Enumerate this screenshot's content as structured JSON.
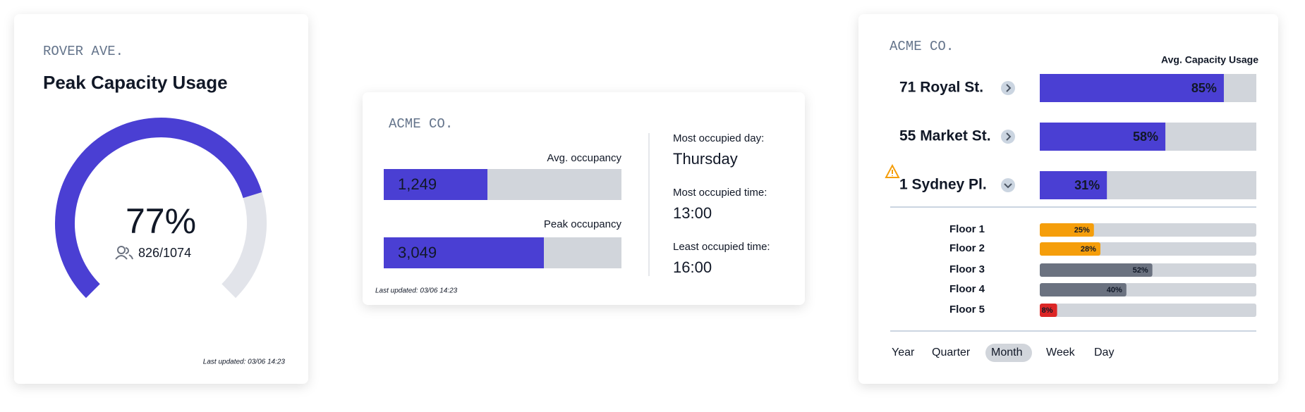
{
  "cards": [
    {
      "location": "ROVER AVE.",
      "title": "Peak Capacity Usage",
      "value": 77,
      "value_label": "77%",
      "occupancy": "826/1074",
      "last_updated": "Last updated: 03/06 14:23",
      "color": "#4a3fd3"
    },
    {
      "company": "ACME CO.",
      "metrics": [
        {
          "label": "Avg. occupancy",
          "value": "1,249"
        },
        {
          "label": "Peak occupancy",
          "value": "3,049"
        }
      ],
      "last_updated": "Last updated: 03/06 14:23",
      "stats": [
        {
          "label": "Most occupied day:",
          "value": "Thursday"
        },
        {
          "label": "Most occupied time:",
          "value": "13:00"
        },
        {
          "label": "Least occupied time:",
          "value": "16:00"
        }
      ]
    },
    {
      "company": "ACME CO.",
      "column_label": "Avg. Capacity Usage",
      "sites": [
        {
          "name": "71 Royal St.",
          "value": 85,
          "value_label": "85%"
        },
        {
          "name": "55 Market St.",
          "value": 58,
          "value_label": "58%"
        },
        {
          "name": "1 Sydney Pl.",
          "value": 31,
          "value_label": "31%"
        }
      ],
      "floors": [
        {
          "name": "Floor 1",
          "value": 25,
          "value_label": "25%",
          "color": "#f59e0b"
        },
        {
          "name": "Floor 2",
          "value": 28,
          "value_label": "28%",
          "color": "#f59e0b"
        },
        {
          "name": "Floor 3",
          "value": 52,
          "value_label": "52%",
          "color": "#6b7280"
        },
        {
          "name": "Floor 4",
          "value": 40,
          "value_label": "40%",
          "color": "#6b7280"
        },
        {
          "name": "Floor 5",
          "value": 8,
          "value_label": "8%",
          "color": "#dc2626"
        }
      ],
      "periods": [
        "Year",
        "Quarter",
        "Month",
        "Week",
        "Day"
      ],
      "selected_period": "Month"
    }
  ]
}
